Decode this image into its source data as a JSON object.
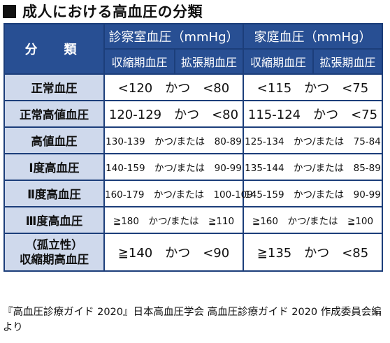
{
  "title": "成人における高血圧の分類",
  "colors": {
    "header_bg": "#284f93",
    "label_bg": "#cfd9ec",
    "border": "#1c3e7a"
  },
  "table": {
    "classification_header": "分　類",
    "groups": [
      "診察室血圧（mmHg）",
      "家庭血圧（mmHg）"
    ],
    "subheaders": [
      "収縮期血圧",
      "拡張期血圧",
      "収縮期血圧",
      "拡張期血圧"
    ],
    "rows": [
      {
        "label": "正常血圧",
        "office": "<120　かつ　<80",
        "home": "<115　かつ　<75"
      },
      {
        "label": "正常高値血圧",
        "office": "120-129　かつ　<80",
        "home": "115-124　かつ　<75"
      },
      {
        "label": "高値血圧",
        "office": "130-139　かつ/または　80-89",
        "home": "125-134　かつ/または　75-84"
      },
      {
        "label": "Ⅰ度高血圧",
        "office": "140-159　かつ/または　90-99",
        "home": "135-144　かつ/または　85-89"
      },
      {
        "label": "Ⅱ度高血圧",
        "office": "160-179　かつ/または　100-109",
        "home": "145-159　かつ/または　90-99"
      },
      {
        "label": "Ⅲ度高血圧",
        "office": "≧180　かつ/または　≧110",
        "home": "≧160　かつ/または　≧100"
      },
      {
        "label_line1": "（孤立性）",
        "label_line2": "収縮期高血圧",
        "office": "≧140　かつ　<90",
        "home": "≧135　かつ　<85"
      }
    ]
  },
  "source_note": "『高血圧診療ガイド 2020』日本高血圧学会 高血圧診療ガイド 2020 作成委員会編より"
}
